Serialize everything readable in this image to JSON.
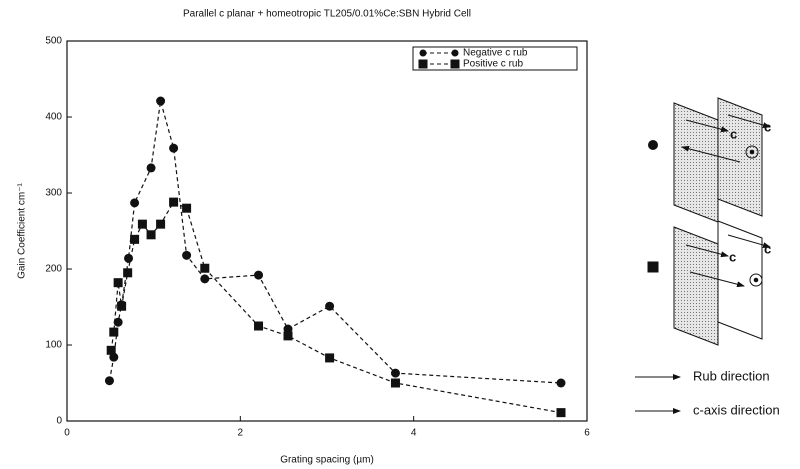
{
  "chart_data": {
    "type": "line",
    "title": "Parallel c planar + homeotropic TL205/0.01%Ce:SBN Hybrid Cell",
    "xlabel": "Grating spacing (µm)",
    "ylabel": "Gain Coefficient cm⁻¹",
    "xlim": [
      0,
      6
    ],
    "xticks": [
      0,
      2,
      4,
      6
    ],
    "ylim": [
      0,
      500
    ],
    "yticks": [
      0,
      100,
      200,
      300,
      400,
      500
    ],
    "legend": "upper right",
    "series": [
      {
        "name": "Negative c rub",
        "color": "#111111",
        "marker": "circle",
        "x": [
          0.49,
          0.54,
          0.59,
          0.63,
          0.71,
          0.78,
          0.97,
          1.08,
          1.23,
          1.38,
          1.59,
          2.21,
          2.55,
          3.03,
          3.79,
          5.7
        ],
        "values": [
          53,
          84,
          130,
          153,
          214,
          287,
          333,
          421,
          359,
          218,
          187,
          192,
          121,
          151,
          63,
          50
        ]
      },
      {
        "name": "Positive c rub",
        "color": "#111111",
        "marker": "square",
        "x": [
          0.51,
          0.54,
          0.59,
          0.63,
          0.7,
          0.78,
          0.87,
          0.97,
          1.08,
          1.23,
          1.38,
          1.59,
          2.21,
          2.55,
          3.03,
          3.79,
          5.7
        ],
        "values": [
          93,
          117,
          182,
          151,
          195,
          239,
          259,
          245,
          259,
          288,
          280,
          201,
          125,
          112,
          83,
          50,
          11
        ]
      }
    ],
    "annotations": [
      "c",
      "c",
      "c",
      "c",
      "Rub direction",
      "c-axis direction"
    ]
  }
}
